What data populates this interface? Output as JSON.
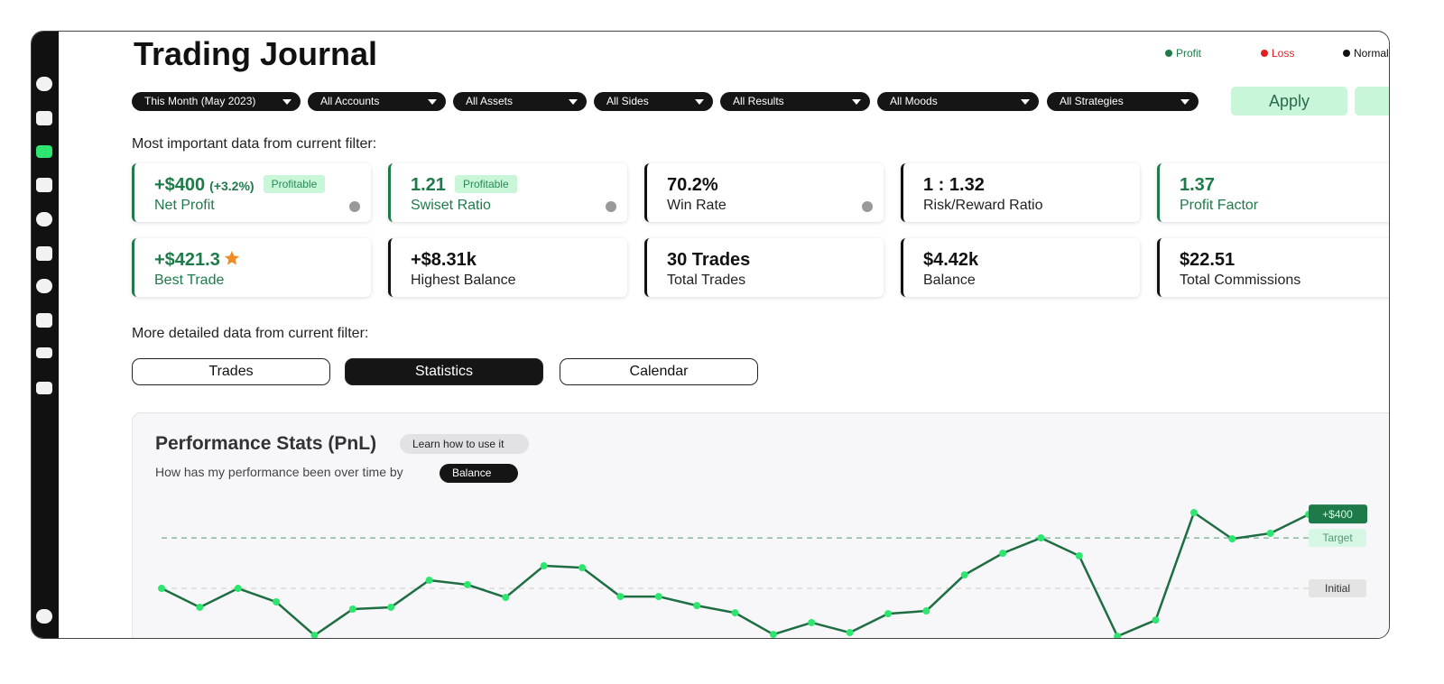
{
  "header": {
    "title": "Trading Journal",
    "legend": [
      {
        "name": "Profit",
        "color": "#1f7a4a"
      },
      {
        "name": "Loss",
        "color": "#e02020"
      },
      {
        "name": "Normal",
        "color": "#111111"
      }
    ]
  },
  "filters": [
    "This Month (May 2023)",
    "All Accounts",
    "All Assets",
    "All Sides",
    "All Results",
    "All Moods",
    "All Strategies"
  ],
  "apply": "Apply",
  "summary_heading": "Most important data from current filter:",
  "cards": [
    {
      "value": "+$400",
      "change": "(+3.2%)",
      "badge": "Profitable",
      "label": "Net Profit",
      "color": "#1f7a4a",
      "info": true
    },
    {
      "value": "1.21",
      "badge": "Profitable",
      "label": "Swiset Ratio",
      "color": "#1f7a4a",
      "info": true
    },
    {
      "value": "70.2%",
      "label": "Win Rate",
      "color": "#111111",
      "info": true
    },
    {
      "value": "1 : 1.32",
      "label": "Risk/Reward Ratio",
      "color": "#111111"
    },
    {
      "value": "1.37",
      "label": "Profit Factor",
      "color": "#1f7a4a"
    },
    {
      "value": "+$421.3",
      "label": "Best Trade",
      "color": "#1f7a4a",
      "star": true
    },
    {
      "value": "+$8.31k",
      "label": "Highest Balance",
      "color": "#111111"
    },
    {
      "value": "30 Trades",
      "label": "Total Trades",
      "color": "#111111"
    },
    {
      "value": "$4.42k",
      "label": "Balance",
      "color": "#111111"
    },
    {
      "value": "$22.51",
      "label": "Total Commissions",
      "color": "#111111"
    }
  ],
  "detail_heading": "More detailed data from current filter:",
  "tabs": [
    "Trades",
    "Statistics",
    "Calendar"
  ],
  "panel": {
    "title": "Performance Stats (PnL)",
    "help": "Learn how to use it",
    "subtitle": "How has my performance been over time by",
    "selector": "Balance"
  },
  "chart_data": {
    "type": "line",
    "values": [
      0,
      -102,
      0,
      -73,
      -254,
      -112,
      -102,
      44,
      20,
      -49,
      122,
      112,
      -44,
      -44,
      -93,
      -132,
      -249,
      -185,
      -239,
      -137,
      -122,
      73,
      190,
      273,
      176,
      -259,
      -171,
      410,
      268,
      298,
      400
    ],
    "color": "#1f6e43",
    "point_color": "#2ee66f",
    "ylim": [
      -273,
      537
    ],
    "reference_lines": [
      {
        "label": "Target",
        "value": 273,
        "color": "#4f9b76"
      },
      {
        "label": "Initial",
        "value": 0,
        "color": "#cccccc"
      }
    ],
    "end_label": "+$400"
  }
}
